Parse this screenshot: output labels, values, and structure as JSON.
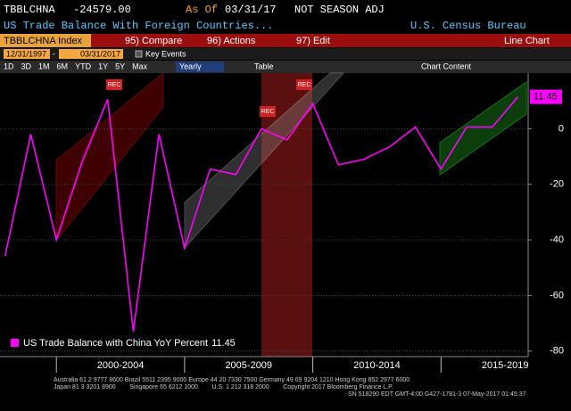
{
  "header": {
    "ticker": "TBBLCHNA",
    "last_value": "-24579.00",
    "as_of_label": "As Of",
    "as_of_date": "03/31/17",
    "adjustment": "NOT SEASON ADJ",
    "description": "US Trade Balance With Foreign Countries...",
    "source": "U.S. Census Bureau"
  },
  "menu": {
    "security": "TBBLCHNA Index",
    "compare": "95) Compare",
    "actions": "96) Actions",
    "edit": "97) Edit",
    "view": "Line Chart"
  },
  "range": {
    "start": "12/31/1997",
    "separator": "-",
    "end": "03/31/2017",
    "key_events": "Key Events"
  },
  "toolbar": {
    "periods": [
      "1D",
      "3D",
      "1M",
      "6M",
      "YTD",
      "1Y",
      "5Y",
      "Max"
    ],
    "frequency": "Yearly",
    "table": "Table",
    "chart_content": "Chart Content"
  },
  "chart_data": {
    "type": "line",
    "x": [
      1998,
      1999,
      2000,
      2001,
      2002,
      2003,
      2004,
      2005,
      2006,
      2007,
      2008,
      2009,
      2010,
      2011,
      2012,
      2013,
      2014,
      2015,
      2016,
      2017,
      2018
    ],
    "series": [
      {
        "name": "US Trade Balance with China YoY Percent",
        "color": "#ff00ff",
        "values": [
          -45.8,
          -2,
          -40,
          -12,
          10.6,
          -73,
          -2,
          -43,
          -14.5,
          -16.5,
          0,
          -4,
          9,
          -13,
          -11,
          -6.5,
          0.6,
          -14.5,
          0.6,
          0.6,
          11.45
        ]
      }
    ],
    "recession_labels": [
      "REC",
      "REC",
      "REC"
    ],
    "xlim": [
      1997.8,
      2018.4
    ],
    "xticks": [
      {
        "value": 2000,
        "label": "2000-2004"
      },
      {
        "value": 2005,
        "label": "2005-2009"
      },
      {
        "value": 2010,
        "label": "2010-2014"
      },
      {
        "value": 2015,
        "label": "2015-2019"
      }
    ],
    "ylim": [
      -82,
      20
    ],
    "yticks": [
      0,
      -20,
      -40,
      -60,
      -80
    ],
    "grid": true
  },
  "footer": {
    "line1": "Australia 61 2 9777 8600 Brazil 5511 2395 9000 Europe 44 20 7330 7500 Germany 49 69 9204 1210 Hong Kong 852 2977 6000",
    "line2": "Japan 81 3 3201 8900        Singapore 65 6212 1000        U.S. 1 212 318 2000        Copyright 2017 Bloomberg Finance L.P.",
    "line3": "SN 518290 EDT  GMT-4:00 G427-1781-3 07-May-2017 01:45:37"
  }
}
